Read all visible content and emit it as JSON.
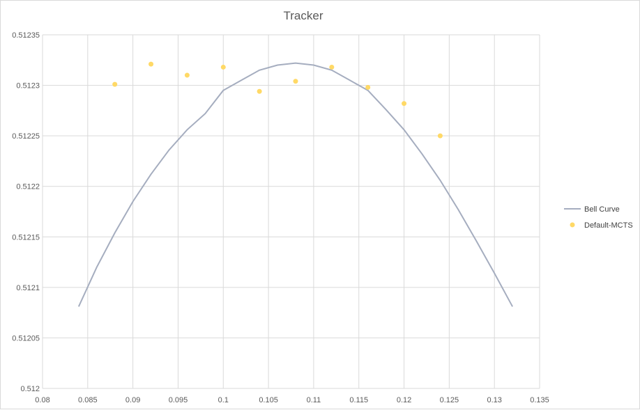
{
  "chart_data": {
    "type": "scatter",
    "title": "Tracker",
    "xlabel": "",
    "ylabel": "",
    "xlim": [
      0.08,
      0.135
    ],
    "ylim": [
      0.512,
      0.51235
    ],
    "x_ticks": [
      0.08,
      0.085,
      0.09,
      0.095,
      0.1,
      0.105,
      0.11,
      0.115,
      0.12,
      0.125,
      0.13,
      0.135
    ],
    "x_tick_labels": [
      "0.08",
      "0.085",
      "0.09",
      "0.095",
      "0.1",
      "0.105",
      "0.11",
      "0.115",
      "0.12",
      "0.125",
      "0.13",
      "0.135"
    ],
    "y_ticks": [
      0.512,
      0.51205,
      0.5121,
      0.51215,
      0.5122,
      0.51225,
      0.5123,
      0.51235
    ],
    "y_tick_labels": [
      "0.512",
      "0.51205",
      "0.5121",
      "0.51215",
      "0.5122",
      "0.51225",
      "0.5123",
      "0.51235"
    ],
    "grid": true,
    "legend_position": "right",
    "series": [
      {
        "name": "Bell Curve",
        "kind": "line",
        "color": "#a5adbf",
        "peak_x": 0.108,
        "peak_y": 0.512322,
        "x": [
          0.084,
          0.086,
          0.088,
          0.09,
          0.092,
          0.094,
          0.096,
          0.098,
          0.1,
          0.102,
          0.104,
          0.106,
          0.108,
          0.11,
          0.112,
          0.114,
          0.116,
          0.118,
          0.12,
          0.122,
          0.124,
          0.126,
          0.128,
          0.13,
          0.132
        ],
        "y": [
          0.512081,
          0.51212,
          0.512154,
          0.512185,
          0.512212,
          0.512236,
          0.512256,
          0.512272,
          0.512295,
          0.512305,
          0.512315,
          0.51232,
          0.512322,
          0.51232,
          0.512315,
          0.512305,
          0.512295,
          0.512276,
          0.512256,
          0.512232,
          0.512206,
          0.512177,
          0.512146,
          0.512114,
          0.512081
        ]
      },
      {
        "name": "Default-MCTS",
        "kind": "scatter",
        "color": "#ffd966",
        "x": [
          0.088,
          0.092,
          0.096,
          0.1,
          0.104,
          0.108,
          0.112,
          0.116,
          0.12,
          0.124
        ],
        "y": [
          0.512301,
          0.512321,
          0.51231,
          0.512318,
          0.512294,
          0.512304,
          0.512318,
          0.512298,
          0.512282,
          0.51225
        ]
      }
    ]
  }
}
